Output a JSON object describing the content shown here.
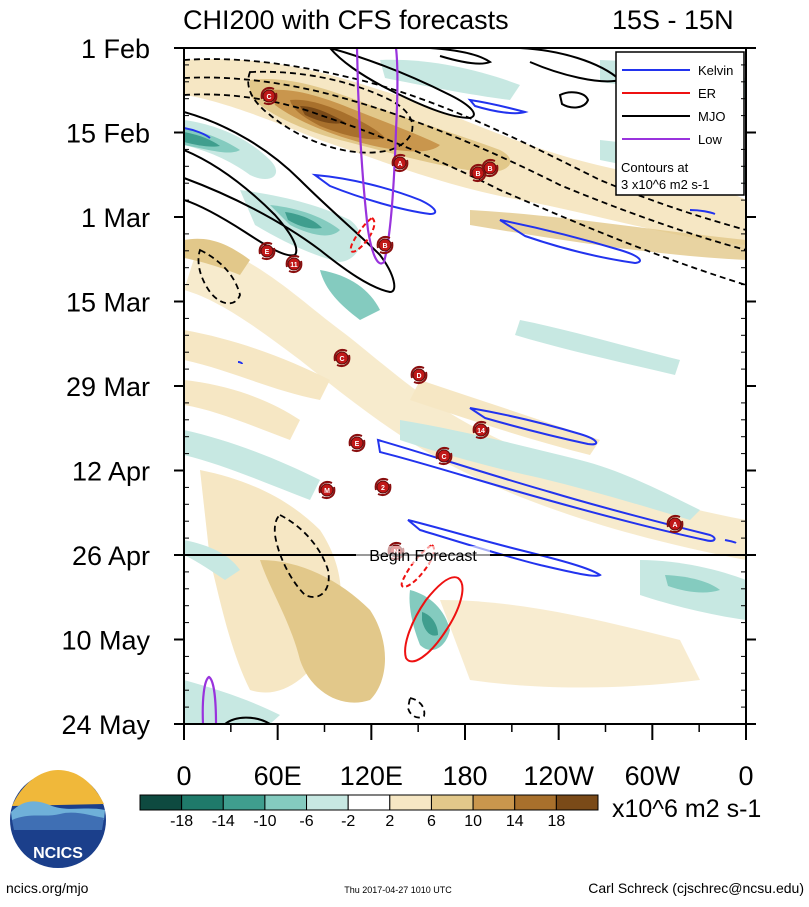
{
  "chart_data": {
    "type": "heatmap",
    "title": "CHI200 with CFS forecasts",
    "region_label": "15S - 15N",
    "x_ticks": [
      "0",
      "60E",
      "120E",
      "180",
      "120W",
      "60W",
      "0"
    ],
    "y_ticks": [
      "1 Feb",
      "15 Feb",
      "1 Mar",
      "15 Mar",
      "29 Mar",
      "12 Apr",
      "26 Apr",
      "10 May",
      "24 May"
    ],
    "forecast_label": "Begin Forecast",
    "forecast_start": "26 Apr",
    "colorbar": {
      "ticks": [
        "-18",
        "-14",
        "-10",
        "-6",
        "-2",
        "2",
        "6",
        "10",
        "14",
        "18"
      ],
      "units": "x10^6 m2 s-1",
      "colors": [
        "#0e4a40",
        "#1f7a6a",
        "#3f9e8e",
        "#84cbbf",
        "#c7e8e2",
        "#ffffff",
        "#f6e7c4",
        "#e2c88a",
        "#c9964d",
        "#a8702c",
        "#7a4a18"
      ]
    },
    "legend": {
      "placement": "top-right",
      "items": [
        {
          "name": "Kelvin",
          "color": "#2233ee"
        },
        {
          "name": "ER",
          "color": "#ee1111"
        },
        {
          "name": "MJO",
          "color": "#000000"
        },
        {
          "name": "Low",
          "color": "#9933dd"
        }
      ],
      "note_line1": "Contours at",
      "note_line2": "3 x10^6 m2 s-1"
    },
    "storm_markers": [
      {
        "label": "C"
      },
      {
        "label": "A"
      },
      {
        "label": "B"
      },
      {
        "label": "B"
      },
      {
        "label": "E"
      },
      {
        "label": "11"
      },
      {
        "label": "B"
      },
      {
        "label": "C"
      },
      {
        "label": "D"
      },
      {
        "label": "14"
      },
      {
        "label": "E"
      },
      {
        "label": "C"
      },
      {
        "label": "M"
      },
      {
        "label": "2"
      },
      {
        "label": "A"
      },
      {
        "label": "N"
      }
    ]
  },
  "logo_text": "NCICS",
  "footer": {
    "site": "ncics.org/mjo",
    "timestamp": "Thu 2017-04-27 1010 UTC",
    "author": "Carl Schreck (cjschrec@ncsu.edu)"
  }
}
